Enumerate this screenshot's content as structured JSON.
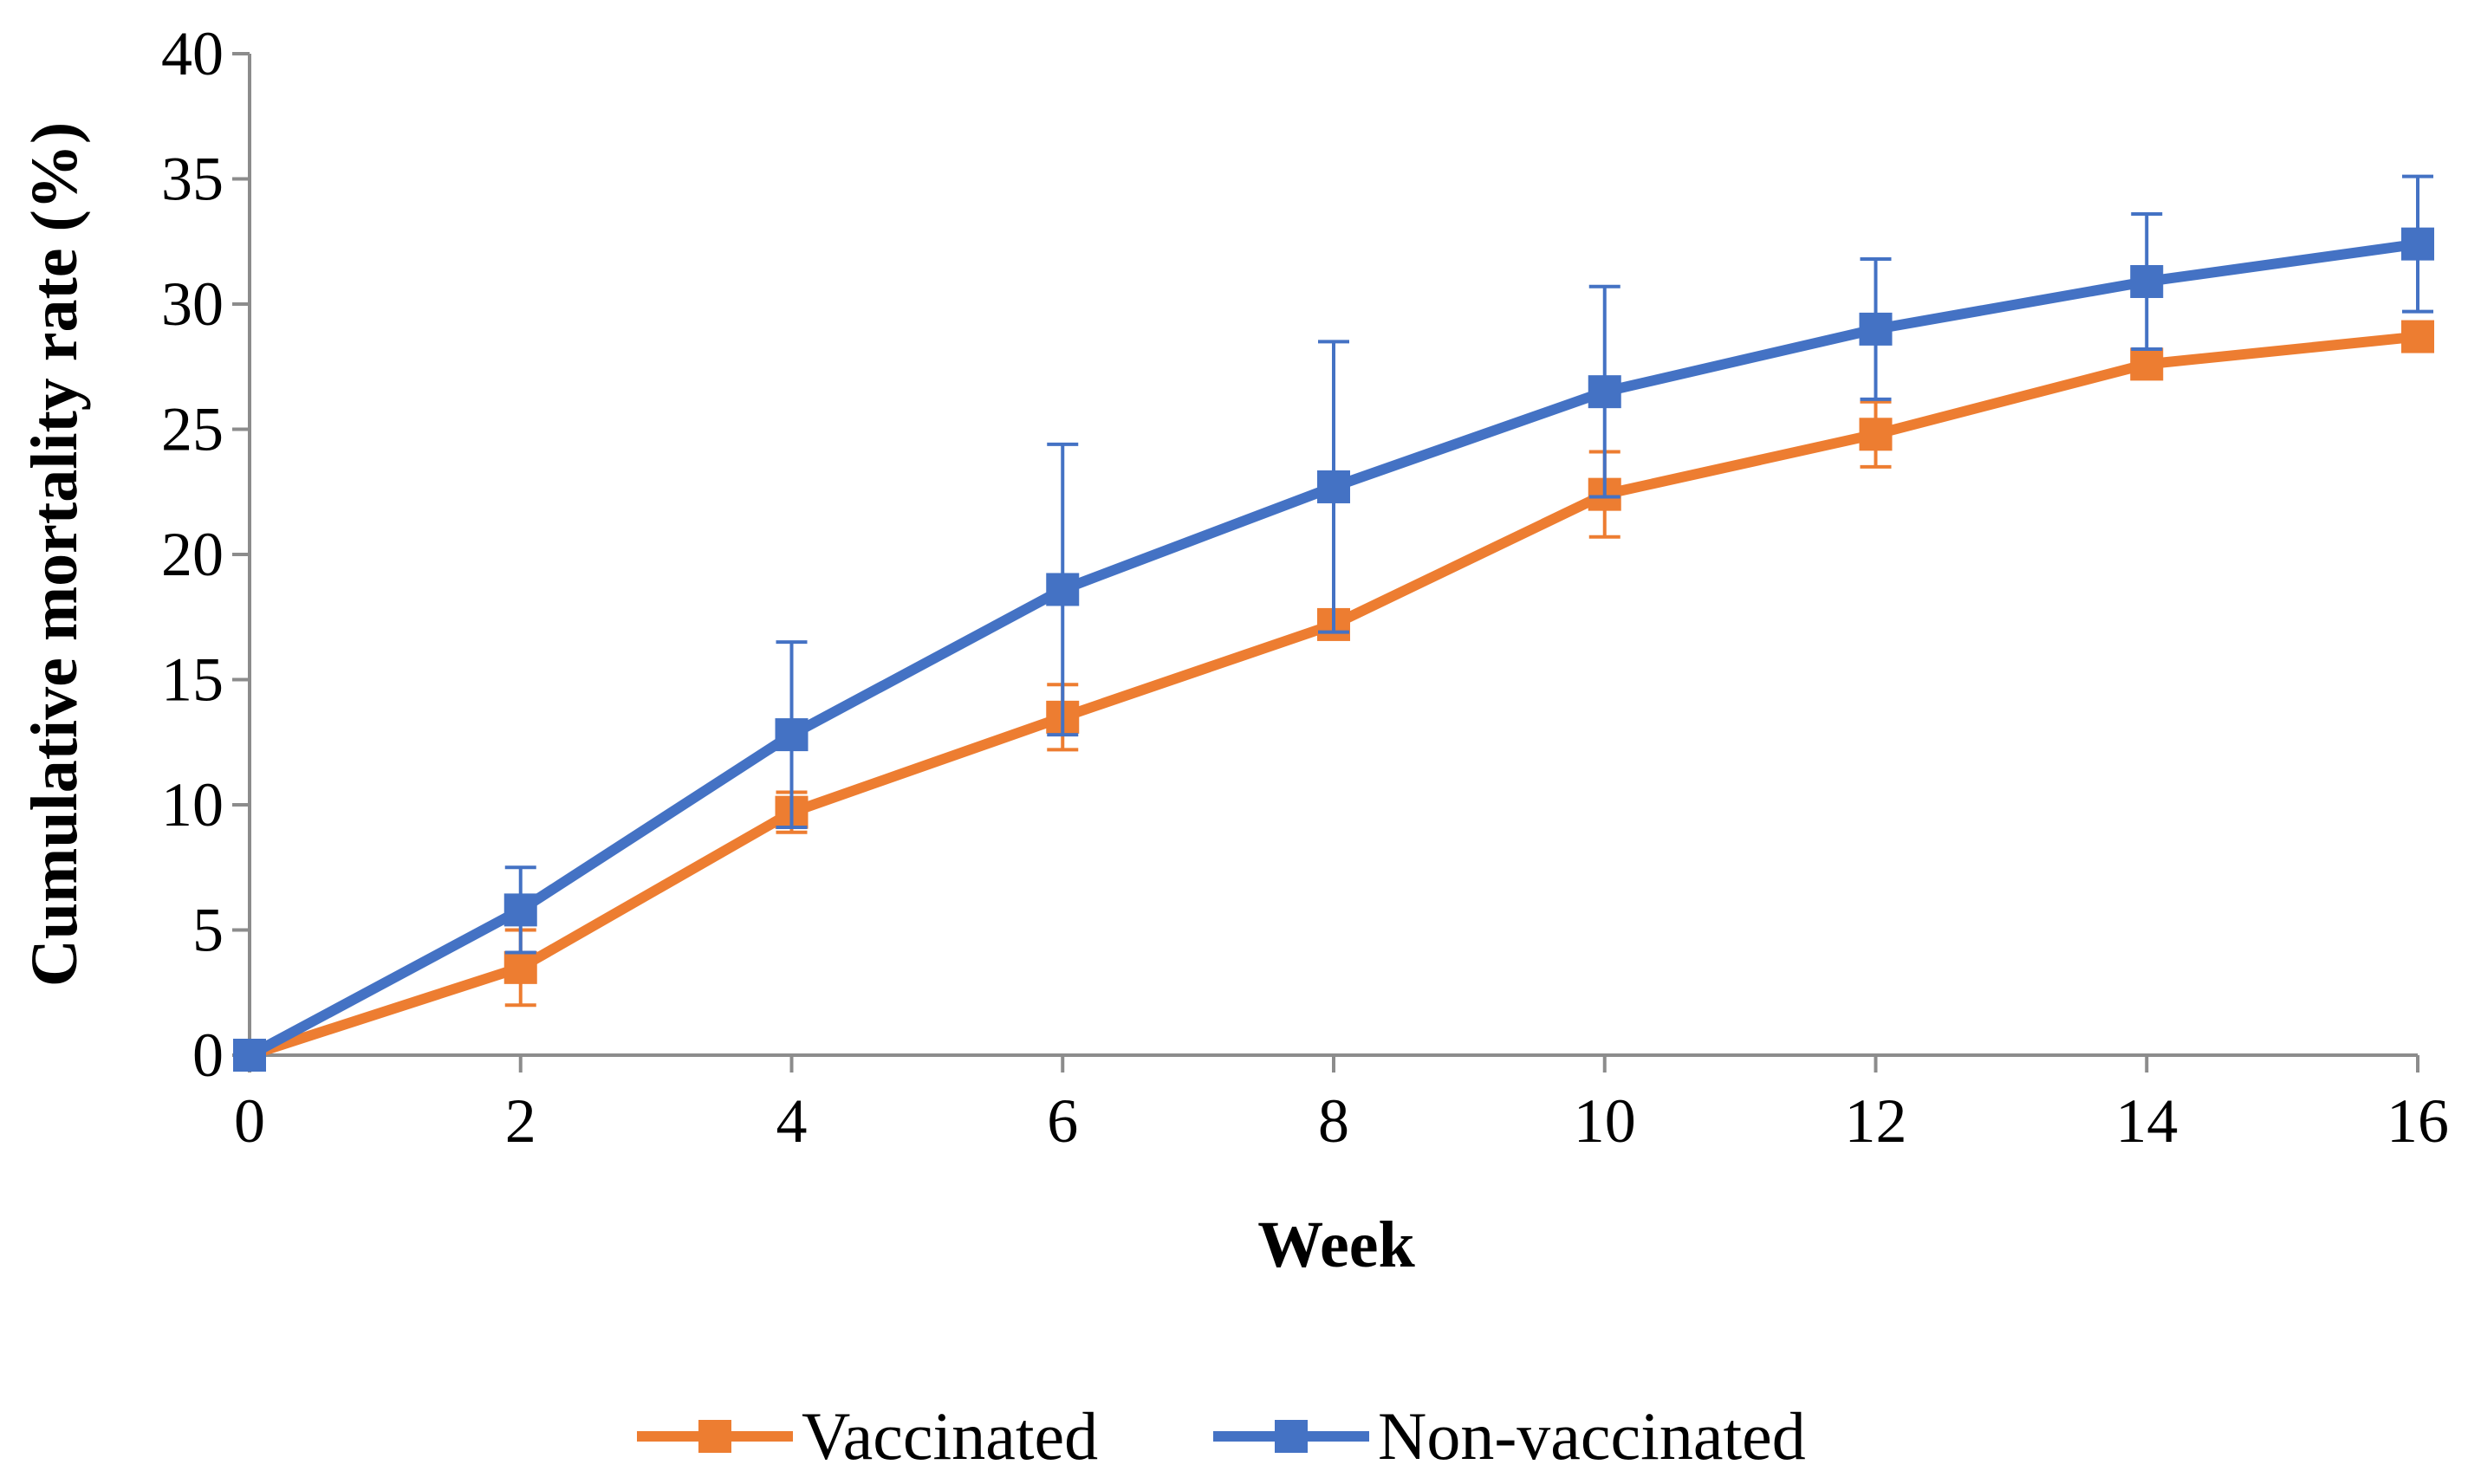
{
  "chart_data": {
    "type": "line",
    "title": "",
    "xlabel": "Week",
    "ylabel": "Cumulative mortality rate (%)",
    "xlim": [
      0,
      16
    ],
    "ylim": [
      0,
      40
    ],
    "x_ticks": [
      0,
      2,
      4,
      6,
      8,
      10,
      12,
      14,
      16
    ],
    "y_ticks": [
      0,
      5,
      10,
      15,
      20,
      25,
      30,
      35,
      40
    ],
    "grid": false,
    "legend_position": "bottom-center",
    "x": [
      0,
      2,
      4,
      6,
      8,
      10,
      12,
      14,
      16
    ],
    "series": [
      {
        "name": "Vaccinated",
        "color": "#ED7D31",
        "marker": "square",
        "values": [
          0,
          3.5,
          9.7,
          13.5,
          17.2,
          22.4,
          24.8,
          27.6,
          28.7
        ],
        "error": [
          0,
          1.5,
          0.8,
          1.3,
          0,
          1.7,
          1.3,
          0,
          0
        ]
      },
      {
        "name": "Non-vaccinated",
        "color": "#4472C4",
        "marker": "square",
        "values": [
          0,
          5.8,
          12.8,
          18.6,
          22.7,
          26.5,
          29.0,
          30.9,
          32.4
        ],
        "error": [
          0,
          1.7,
          3.7,
          5.8,
          5.8,
          4.2,
          2.8,
          2.7,
          2.7
        ]
      }
    ]
  }
}
